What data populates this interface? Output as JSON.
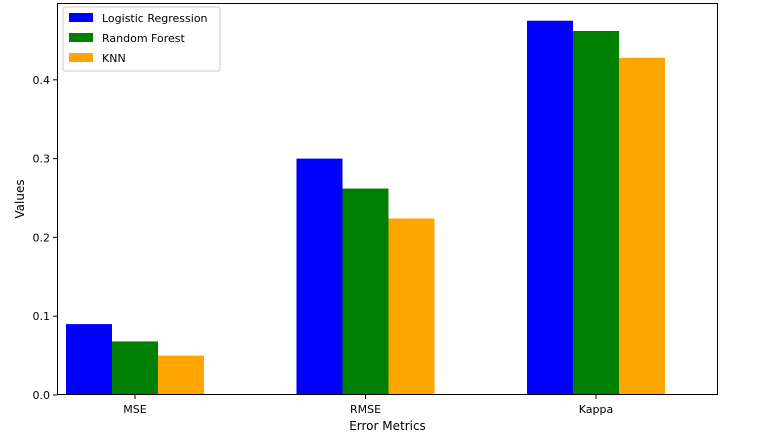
{
  "chart_data": {
    "type": "bar",
    "title": "",
    "xlabel": "Error Metrics",
    "ylabel": "Values",
    "categories": [
      "MSE",
      "RMSE",
      "Kappa"
    ],
    "series": [
      {
        "name": "Logistic Regression",
        "color": "#0000ff",
        "values": [
          0.09,
          0.3,
          0.475
        ]
      },
      {
        "name": "Random Forest",
        "color": "#008000",
        "values": [
          0.068,
          0.262,
          0.462
        ]
      },
      {
        "name": "KNN",
        "color": "#ffa500",
        "values": [
          0.05,
          0.224,
          0.428
        ]
      }
    ],
    "yticks": [
      "0.0",
      "0.1",
      "0.2",
      "0.3",
      "0.4"
    ],
    "ylim": [
      0,
      0.4975
    ],
    "grid": false,
    "legend_position": "top-left"
  }
}
